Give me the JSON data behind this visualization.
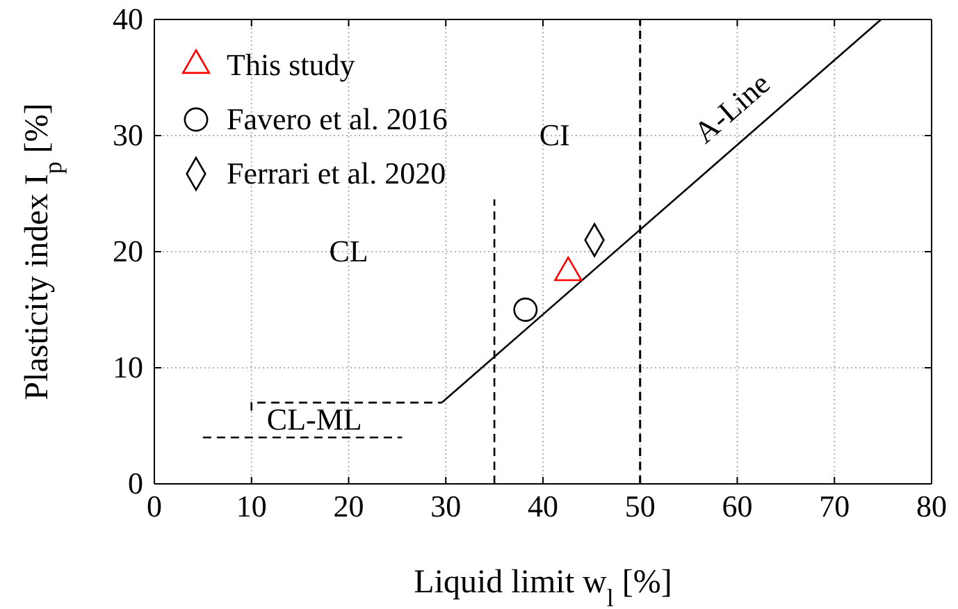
{
  "chart_data": {
    "type": "scatter",
    "xlabel": "Liquid limit w$_{l}$ [%]",
    "ylabel": "Plasticity index I$_{p}$ [%]",
    "xlim": [
      0,
      80
    ],
    "ylim": [
      0,
      40
    ],
    "xticks": [
      0,
      10,
      20,
      30,
      40,
      50,
      60,
      70,
      80
    ],
    "yticks": [
      0,
      10,
      20,
      30,
      40
    ],
    "grid": true,
    "legend": "top left",
    "series": [
      {
        "type": "line",
        "name": "A-Line",
        "color": "#000000",
        "x": [
          29.6,
          74.8
        ],
        "values": [
          7,
          40
        ],
        "marker": "none",
        "line_style": "solid"
      },
      {
        "type": "line",
        "color": "#000000",
        "x": [
          35,
          35
        ],
        "values": [
          0,
          24.5
        ],
        "marker": "none",
        "line_style": "dashed"
      },
      {
        "type": "line",
        "color": "#000000",
        "x": [
          10,
          10,
          29.6
        ],
        "values": [
          6.3,
          7,
          7
        ],
        "marker": "none",
        "line_style": "dashed"
      },
      {
        "type": "line",
        "color": "#000000",
        "x": [
          5,
          25.5
        ],
        "values": [
          4,
          4
        ],
        "marker": "none",
        "line_style": "dashed"
      },
      {
        "name": "This study",
        "color": "#ff0000",
        "x": [
          42.6
        ],
        "values": [
          18.2
        ],
        "marker": "triangle"
      },
      {
        "name": "Favero et al. 2016",
        "color": "#000000",
        "x": [
          38.2
        ],
        "values": [
          15
        ],
        "marker": "circle"
      },
      {
        "name": "Ferrari et al. 2020",
        "color": "#000000",
        "x": [
          45.3
        ],
        "values": [
          21
        ],
        "marker": "diamond"
      }
    ],
    "ref_lines": [
      {
        "axis": "x",
        "value": 50,
        "color": "#000000",
        "line_style": "dashed"
      }
    ],
    "annotations": [
      "CL",
      "CI",
      "CL-ML"
    ]
  }
}
